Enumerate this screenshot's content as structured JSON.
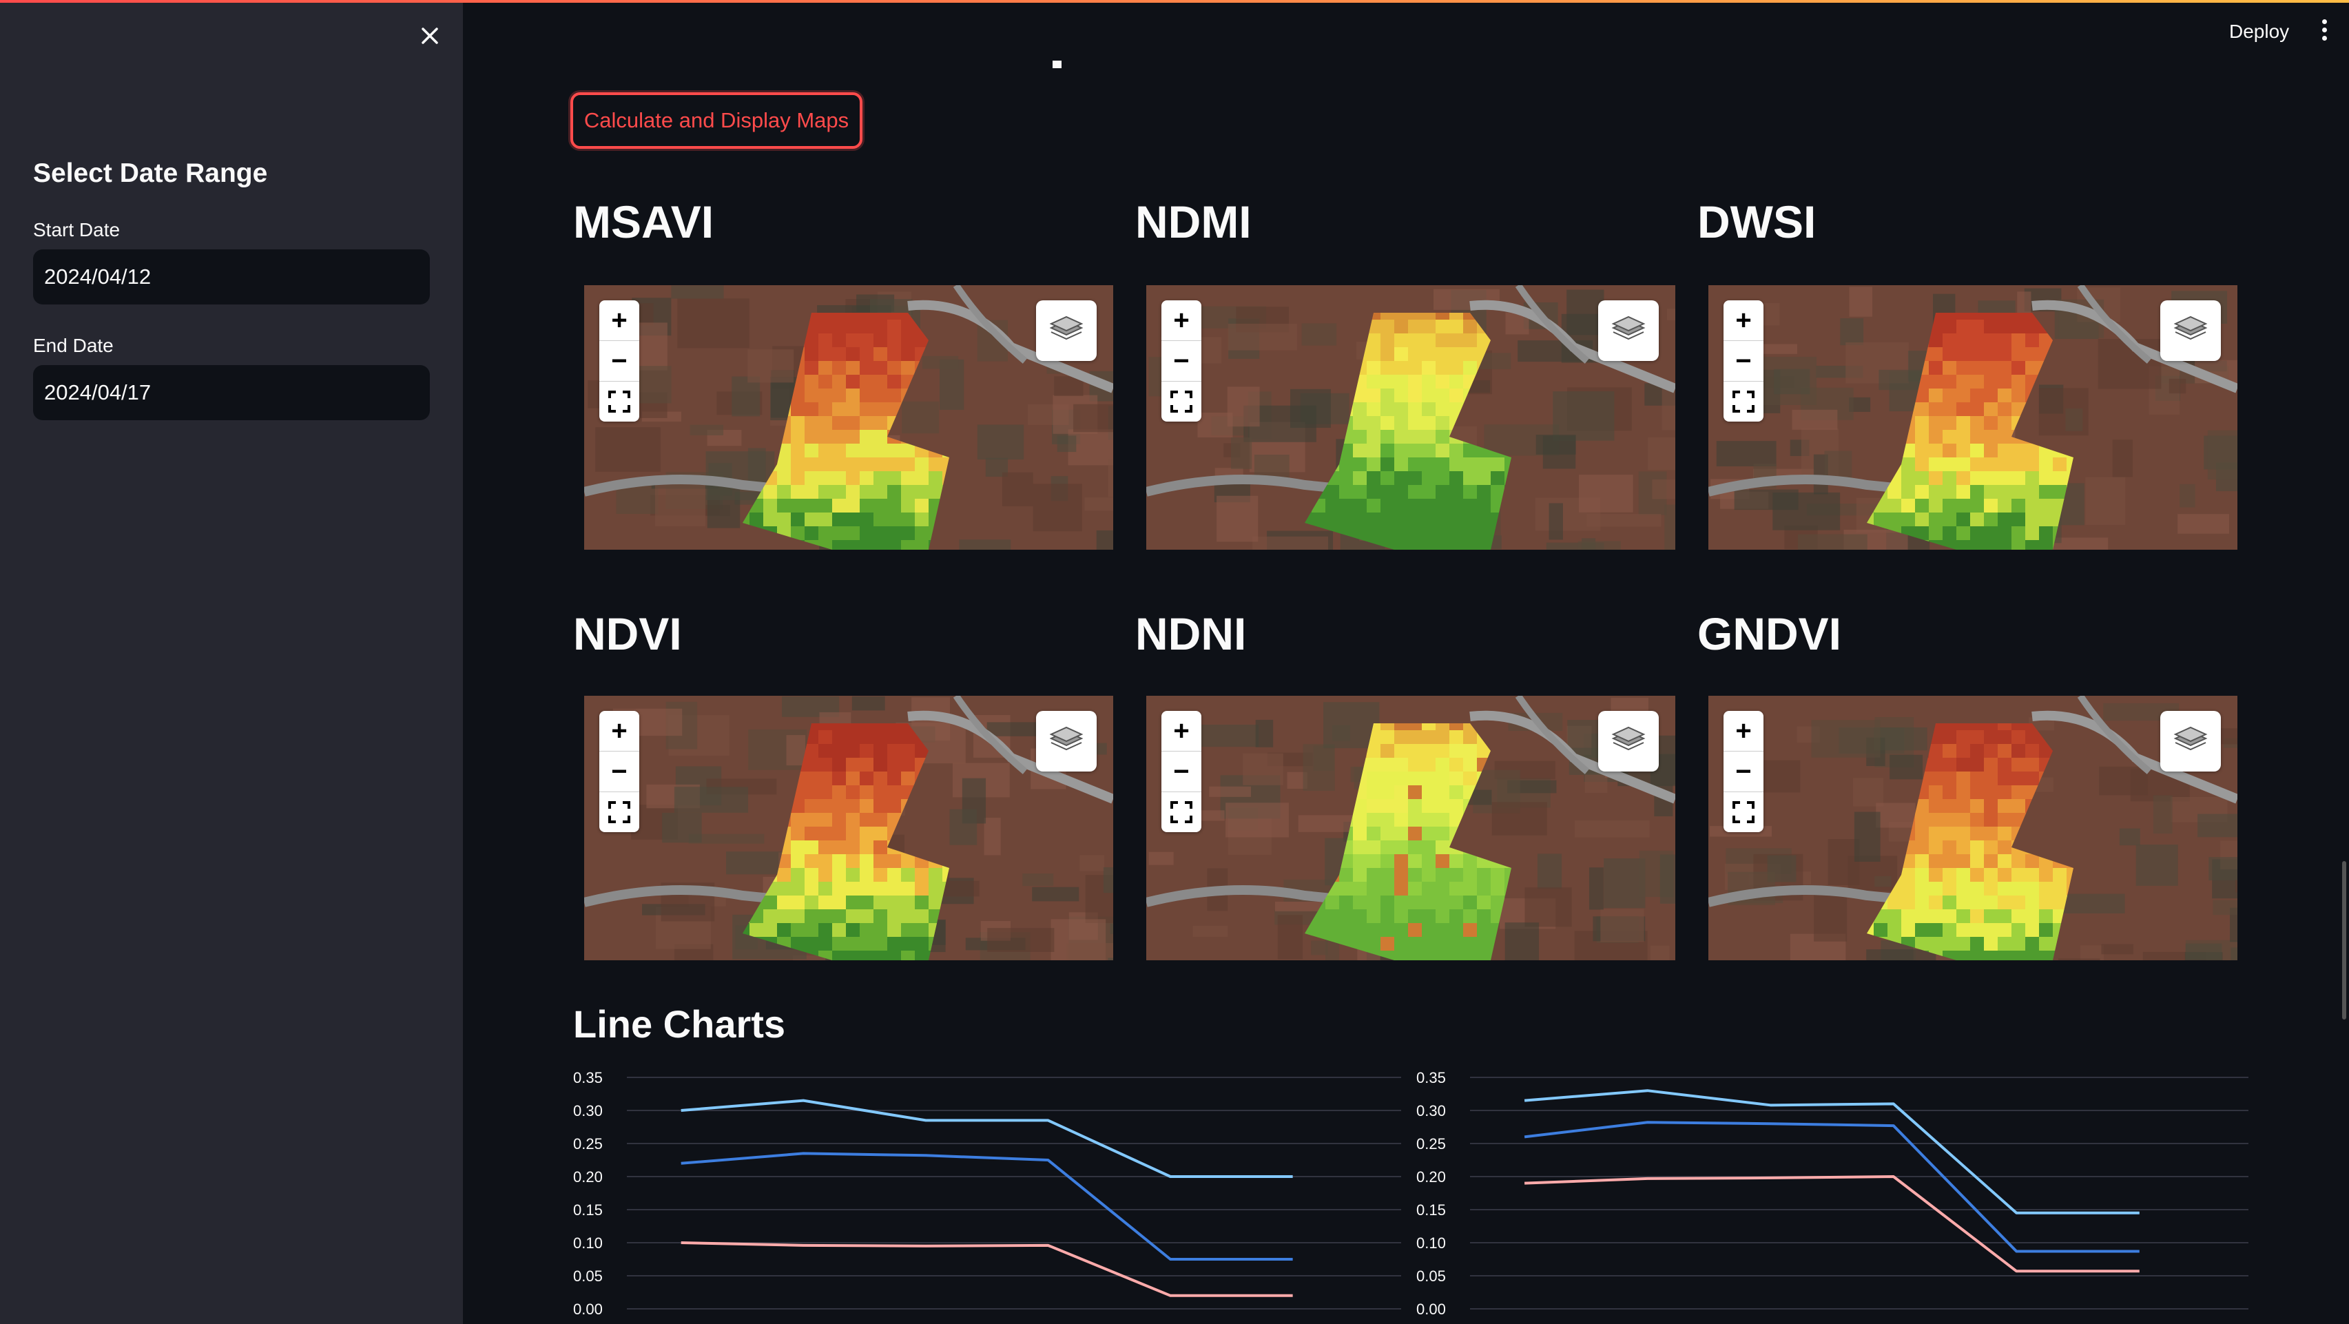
{
  "sidebar": {
    "title": "Select Date Range",
    "start_label": "Start Date",
    "start_value": "2024/04/12",
    "end_label": "End Date",
    "end_value": "2024/04/17",
    "close_icon": "close-icon"
  },
  "header": {
    "deploy_label": "Deploy",
    "menu_icon": "more-vertical-icon"
  },
  "main": {
    "button_label": "Calculate and Display Maps",
    "maps": [
      {
        "title": "MSAVI",
        "pattern": "msavi"
      },
      {
        "title": "NDMI",
        "pattern": "ndmi"
      },
      {
        "title": "DWSI",
        "pattern": "dwsi"
      },
      {
        "title": "NDVI",
        "pattern": "ndvi"
      },
      {
        "title": "NDNI",
        "pattern": "ndni"
      },
      {
        "title": "GNDVI",
        "pattern": "gndvi"
      }
    ],
    "map_controls": {
      "zoom_in": "+",
      "zoom_out": "−",
      "icons": [
        "plus-icon",
        "minus-icon",
        "fullscreen-icon",
        "layers-icon"
      ]
    },
    "section_title": "Line Charts"
  },
  "colors": {
    "accent": "#ff4b4b",
    "bg": "#0e1117",
    "sidebar": "#262730"
  },
  "chart_data": [
    {
      "type": "line",
      "yticks": [
        "0.35",
        "0.30",
        "0.25",
        "0.20",
        "0.15",
        "0.10",
        "0.05",
        "0.00"
      ],
      "ylim": [
        0,
        0.35
      ],
      "x": [
        0,
        1,
        2,
        3,
        4,
        5
      ],
      "series": [
        {
          "color": "#83c9ff",
          "values": [
            0.3,
            0.315,
            0.285,
            0.285,
            0.2,
            0.2
          ]
        },
        {
          "color": "#3d7ee0",
          "values": [
            0.22,
            0.235,
            0.232,
            0.225,
            0.075,
            0.075
          ]
        },
        {
          "color": "#ffabab",
          "values": [
            0.1,
            0.096,
            0.095,
            0.096,
            0.02,
            0.02
          ]
        }
      ]
    },
    {
      "type": "line",
      "yticks": [
        "0.35",
        "0.30",
        "0.25",
        "0.20",
        "0.15",
        "0.10",
        "0.05",
        "0.00"
      ],
      "ylim": [
        0,
        0.35
      ],
      "x": [
        0,
        1,
        2,
        3,
        4,
        5
      ],
      "series": [
        {
          "color": "#83c9ff",
          "values": [
            0.315,
            0.33,
            0.308,
            0.31,
            0.145,
            0.145
          ]
        },
        {
          "color": "#3d7ee0",
          "values": [
            0.26,
            0.282,
            0.28,
            0.277,
            0.087,
            0.087
          ]
        },
        {
          "color": "#ffabab",
          "values": [
            0.19,
            0.197,
            0.198,
            0.2,
            0.057,
            0.057
          ]
        }
      ]
    }
  ]
}
